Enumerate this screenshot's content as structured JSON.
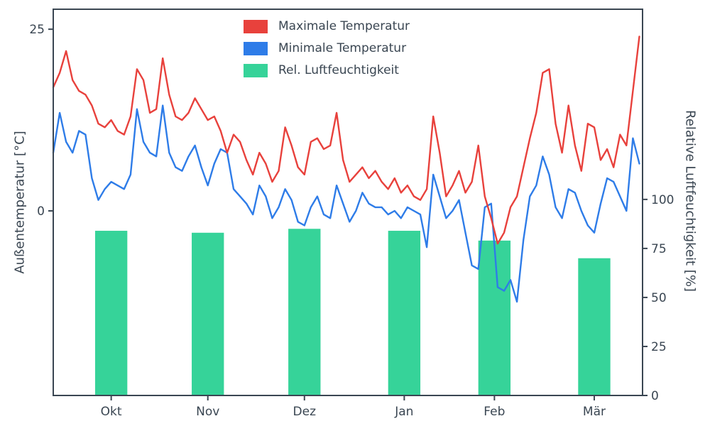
{
  "chart_data": {
    "type": "line+bar",
    "title": "",
    "x_axis": {
      "lim_days": [
        0,
        183
      ],
      "tick_labels": [
        "Okt",
        "Nov",
        "Dez",
        "Jan",
        "Feb",
        "Mär"
      ],
      "tick_positions_day": [
        18,
        48,
        78,
        109,
        137,
        168
      ]
    },
    "left_axis": {
      "label": "Außentemperatur [°C]",
      "ticks": [
        0,
        25
      ],
      "lim": [
        -25.4,
        27.75
      ]
    },
    "right_axis": {
      "label": "Relative Luftfeuchtigkeit [%]",
      "ticks": [
        0,
        25,
        50,
        75,
        100
      ],
      "lim": [
        0,
        197
      ]
    },
    "x_start_day": 0,
    "x_step_days": 2,
    "series": [
      {
        "name": "Maximale Temperatur",
        "color": "#e8413c",
        "values": [
          17,
          19,
          22,
          18,
          16.5,
          16,
          14.5,
          12,
          11.5,
          12.5,
          11,
          10.5,
          13,
          19.5,
          18,
          13.5,
          14,
          21,
          16,
          13,
          12.5,
          13.5,
          15.5,
          14,
          12.5,
          13,
          11,
          8,
          10.5,
          9.5,
          7,
          5,
          8,
          6.5,
          4,
          5.5,
          11.5,
          9,
          6,
          5,
          9.5,
          10,
          8.5,
          9,
          13.5,
          7,
          4,
          5,
          6,
          4.5,
          5.5,
          4,
          3,
          4.5,
          2.5,
          3.5,
          2,
          1.5,
          3,
          13,
          8,
          2,
          3.5,
          5.5,
          2.5,
          4,
          9,
          2,
          -1,
          -4.5,
          -3,
          0.5,
          2,
          6,
          10,
          13.5,
          19,
          19.5,
          12,
          8,
          14.5,
          9,
          5.5,
          12,
          11.5,
          7,
          8.5,
          6,
          10.5,
          9,
          16.5,
          24
        ]
      },
      {
        "name": "Minimale Temperatur",
        "color": "#2e7ce8",
        "values": [
          8,
          13.5,
          9.5,
          8,
          11,
          10.5,
          4.5,
          1.5,
          3,
          4,
          3.5,
          3,
          5,
          14,
          9.5,
          8,
          7.5,
          14.5,
          8,
          6,
          5.5,
          7.5,
          9,
          6,
          3.5,
          6.5,
          8.5,
          8,
          3,
          2,
          1,
          -0.5,
          3.5,
          2,
          -1,
          0.5,
          3,
          1.5,
          -1.5,
          -2,
          0.5,
          2,
          -0.5,
          -1,
          3.5,
          1,
          -1.5,
          0,
          2.5,
          1,
          0.5,
          0.5,
          -0.5,
          0,
          -1,
          0.5,
          0,
          -0.5,
          -5,
          5,
          2,
          -1,
          0,
          1.5,
          -3,
          -7.5,
          -8,
          0.5,
          1,
          -10.5,
          -11,
          -9.5,
          -12.5,
          -4,
          2,
          3.5,
          7.5,
          5,
          0.5,
          -1,
          3,
          2.5,
          0,
          -2,
          -3,
          1,
          4.5,
          4,
          2,
          0,
          10,
          6.5
        ]
      }
    ],
    "bars": {
      "name": "Rel. Luftfeuchtigkeit",
      "color": "#36d399",
      "categories": [
        "Okt",
        "Nov",
        "Dez",
        "Jan",
        "Feb",
        "Mär"
      ],
      "centers_day": [
        18,
        48,
        78,
        109,
        137,
        168
      ],
      "values": [
        84,
        83,
        85,
        84,
        79,
        70
      ],
      "bar_width_days": 10
    },
    "legend": [
      {
        "label": "Maximale Temperatur",
        "color": "#e8413c"
      },
      {
        "label": "Minimale Temperatur",
        "color": "#2e7ce8"
      },
      {
        "label": "Rel. Luftfeuchtigkeit",
        "color": "#36d399"
      }
    ],
    "colors": {
      "text": "#3a4652",
      "spine": "#3a4652",
      "background": "#ffffff"
    },
    "layout": {
      "grid": false,
      "legend_position": "upper center-left"
    }
  }
}
